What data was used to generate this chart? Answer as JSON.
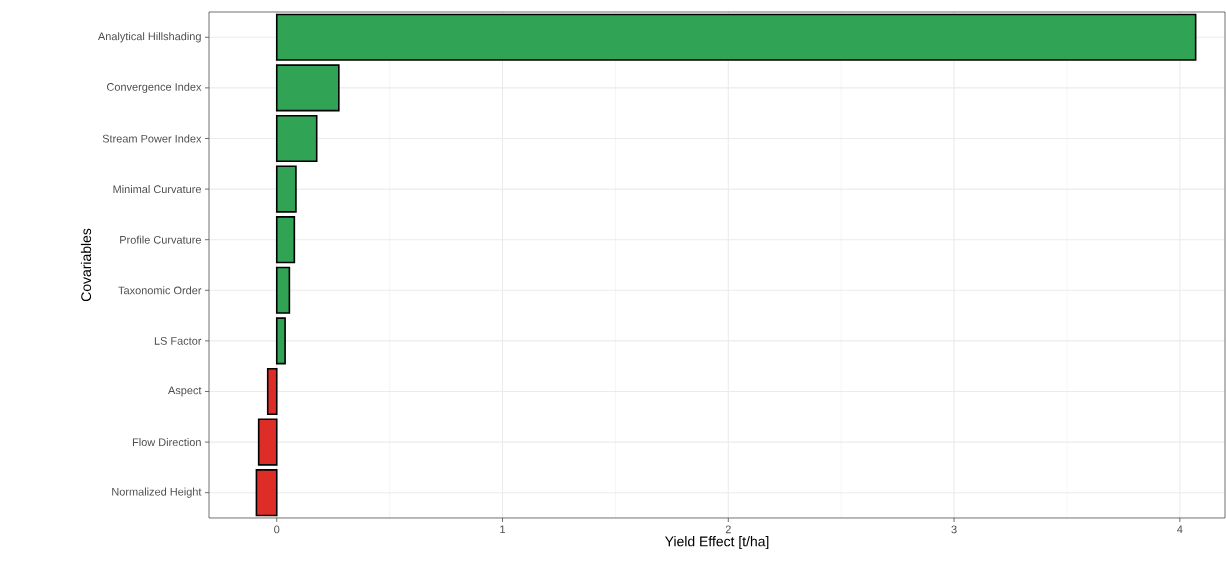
{
  "chart_data": {
    "type": "bar",
    "orientation": "horizontal",
    "xlabel": "Yield Effect [t/ha]",
    "ylabel": "Covariables",
    "categories": [
      "Analytical Hillshading",
      "Convergence Index",
      "Stream Power Index",
      "Minimal Curvature",
      "Profile Curvature",
      "Taxonomic Order",
      "LS Factor",
      "Aspect",
      "Flow Direction",
      "Normalized Height"
    ],
    "values": [
      4.07,
      0.275,
      0.177,
      0.085,
      0.078,
      0.056,
      0.037,
      -0.04,
      -0.08,
      -0.09
    ],
    "colors": [
      "#31a354",
      "#31a354",
      "#31a354",
      "#31a354",
      "#31a354",
      "#31a354",
      "#31a354",
      "#de2d26",
      "#de2d26",
      "#de2d26"
    ],
    "xlim": [
      -0.3,
      4.2
    ],
    "xticks": [
      0,
      1,
      2,
      3,
      4
    ],
    "grid": true
  }
}
